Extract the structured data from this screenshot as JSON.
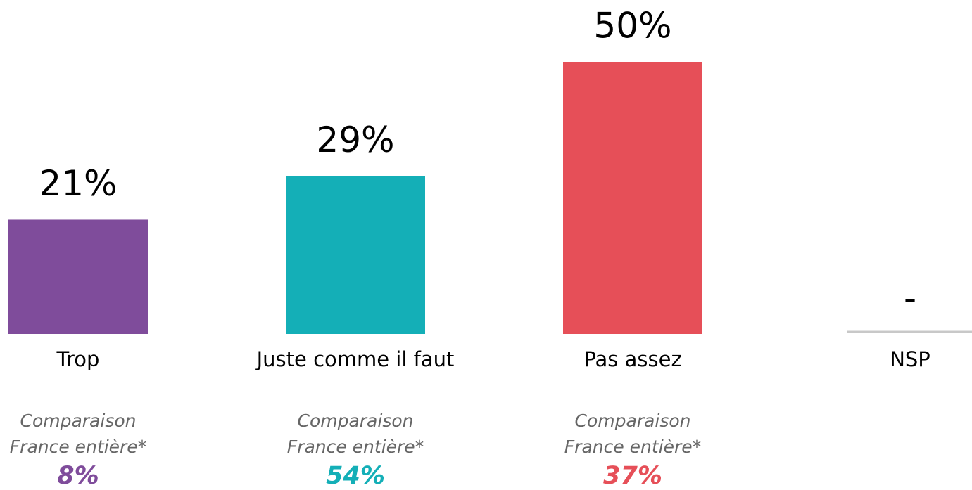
{
  "chart_data": {
    "type": "bar",
    "categories": [
      "Trop",
      "Juste comme il faut",
      "Pas assez",
      "NSP"
    ],
    "values": [
      21,
      29,
      50,
      null
    ],
    "value_labels": [
      "21%",
      "29%",
      "50%",
      "-"
    ],
    "colors": [
      "#7f4c9b",
      "#14afb7",
      "#e64f58",
      "#c8c8c8"
    ],
    "comparison_label": [
      "Comparaison",
      "France entière*"
    ],
    "comparison_values": [
      8,
      54,
      37,
      null
    ],
    "comparison_value_labels": [
      "8%",
      "54%",
      "37%",
      null
    ]
  }
}
